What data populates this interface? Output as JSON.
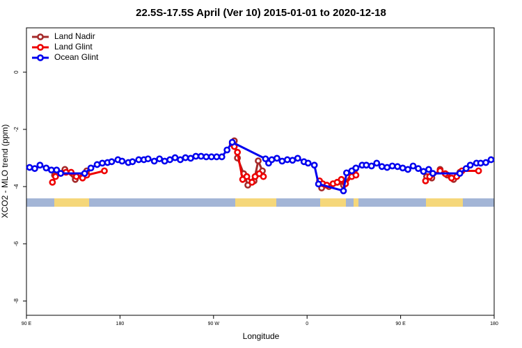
{
  "chart_data": {
    "type": "line",
    "title": "22.5S-17.5S April (Ver 10)   2015-01-01 to 2020-12-18",
    "x_label": "Longitude",
    "y_label": "XCO2 - MLO trend (ppm)",
    "xlim": [
      90,
      540
    ],
    "ylim": [
      -8.5,
      1.55
    ],
    "xticks": [
      {
        "value": 90,
        "label": "90 E"
      },
      {
        "value": 180,
        "label": "180"
      },
      {
        "value": 270,
        "label": "90 W"
      },
      {
        "value": 360,
        "label": "0"
      },
      {
        "value": 450,
        "label": "90 E"
      },
      {
        "value": 540,
        "label": "180"
      }
    ],
    "yticks": [
      0,
      -2,
      -4,
      -6,
      -8
    ],
    "legend": "top-left",
    "series": [
      {
        "name": "Land Nadir",
        "color": "#a52a2a",
        "x": [
          117,
          127,
          137,
          148,
          null,
          290,
          293,
          299,
          303,
          309,
          313,
          317,
          null,
          374,
          381,
          389,
          395,
          406,
          null,
          475,
          480,
          488,
          495,
          501,
          507
        ],
        "values": [
          -3.6,
          -3.4,
          -3.75,
          -3.45,
          null,
          -2.4,
          -3.0,
          -3.55,
          -3.95,
          -3.8,
          -3.1,
          -3.45,
          null,
          -4.05,
          -4.0,
          -3.85,
          -3.95,
          -3.4,
          null,
          -3.65,
          -3.7,
          -3.4,
          -3.6,
          -3.75,
          -3.5
        ]
      },
      {
        "name": "Land Glint",
        "color": "#ee0000",
        "x": [
          115,
          118,
          128,
          133,
          138,
          144,
          148,
          165,
          null,
          288,
          290,
          293,
          298,
          302,
          307,
          310,
          314,
          318,
          null,
          372,
          375,
          379,
          385,
          389,
          393,
          397,
          403,
          407,
          null,
          474,
          478,
          488,
          493,
          499,
          504,
          509,
          525
        ],
        "values": [
          -3.85,
          -3.65,
          -3.5,
          -3.5,
          -3.65,
          -3.7,
          -3.6,
          -3.45,
          null,
          -2.5,
          -2.6,
          -2.8,
          -3.75,
          -3.65,
          -3.85,
          -3.65,
          -3.55,
          -3.65,
          null,
          -3.8,
          -3.9,
          -3.95,
          -3.9,
          -3.85,
          -3.75,
          -3.9,
          -3.65,
          -3.6,
          null,
          -3.8,
          -3.65,
          -3.45,
          -3.55,
          -3.7,
          -3.65,
          -3.45,
          -3.45
        ]
      },
      {
        "name": "Ocean Glint",
        "color": "#0000ee",
        "x": [
          93,
          98,
          103,
          109,
          114,
          119,
          123,
          146,
          152,
          158,
          163,
          168,
          172,
          178,
          182,
          188,
          192,
          198,
          203,
          207,
          213,
          218,
          223,
          228,
          233,
          238,
          243,
          248,
          253,
          258,
          263,
          268,
          273,
          278,
          283,
          288,
          320,
          323,
          326,
          331,
          336,
          341,
          346,
          351,
          357,
          361,
          367,
          371,
          395,
          398,
          403,
          407,
          413,
          417,
          422,
          427,
          432,
          437,
          442,
          447,
          452,
          457,
          462,
          467,
          472,
          477,
          481,
          507,
          513,
          517,
          523,
          527,
          532,
          537
        ],
        "values": [
          -3.33,
          -3.37,
          -3.25,
          -3.35,
          -3.42,
          -3.42,
          -3.54,
          -3.54,
          -3.35,
          -3.23,
          -3.18,
          -3.16,
          -3.13,
          -3.06,
          -3.11,
          -3.16,
          -3.13,
          -3.06,
          -3.06,
          -3.03,
          -3.11,
          -3.03,
          -3.11,
          -3.06,
          -2.99,
          -3.06,
          -2.99,
          -3.01,
          -2.94,
          -2.94,
          -2.96,
          -2.96,
          -2.96,
          -2.96,
          -2.72,
          -2.45,
          -3.03,
          -3.18,
          -3.06,
          -3.01,
          -3.11,
          -3.06,
          -3.08,
          -3.01,
          -3.13,
          -3.18,
          -3.25,
          -3.91,
          -4.15,
          -3.52,
          -3.45,
          -3.35,
          -3.25,
          -3.25,
          -3.28,
          -3.18,
          -3.3,
          -3.33,
          -3.28,
          -3.3,
          -3.35,
          -3.4,
          -3.28,
          -3.37,
          -3.47,
          -3.4,
          -3.54,
          -3.54,
          -3.37,
          -3.25,
          -3.18,
          -3.18,
          -3.16,
          -3.06
        ]
      }
    ]
  }
}
